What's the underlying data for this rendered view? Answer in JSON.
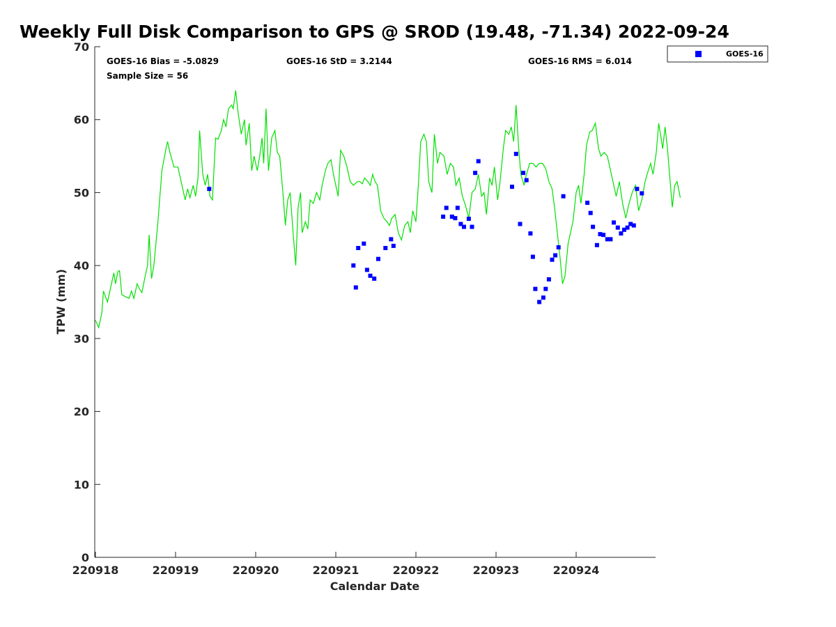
{
  "chart_data": {
    "type": "scatter",
    "title": "Weekly Full Disk Comparison to GPS @ SROD (19.48, -71.34) 2022-09-24",
    "xlabel": "Calendar Date",
    "ylabel": "TPW (mm)",
    "xlim": [
      0,
      7
    ],
    "ylim": [
      0,
      70
    ],
    "x_ticks": [
      0,
      1,
      2,
      3,
      4,
      5,
      6
    ],
    "x_tick_labels": [
      "220918",
      "220919",
      "220920",
      "220921",
      "220922",
      "220923",
      "220924"
    ],
    "y_ticks": [
      0,
      10,
      20,
      30,
      40,
      50,
      60,
      70
    ],
    "y_tick_labels": [
      "0",
      "10",
      "20",
      "30",
      "40",
      "50",
      "60",
      "70"
    ],
    "stats": {
      "bias": "GOES-16 Bias = -5.0829",
      "std": "GOES-16 StD = 3.2144",
      "rms": "GOES-16 RMS = 6.014",
      "sample_size": "Sample Size = 56"
    },
    "legend": {
      "label": "GOES-16",
      "position": "top-right-outside"
    },
    "series": [
      {
        "name": "GPS",
        "style": "line",
        "color": "#00e000",
        "points": [
          [
            0.0,
            32.5
          ],
          [
            0.04,
            31.5
          ],
          [
            0.08,
            33.5
          ],
          [
            0.1,
            36.5
          ],
          [
            0.15,
            35
          ],
          [
            0.2,
            37.5
          ],
          [
            0.23,
            39
          ],
          [
            0.25,
            37.5
          ],
          [
            0.28,
            39.2
          ],
          [
            0.3,
            39.3
          ],
          [
            0.33,
            36
          ],
          [
            0.38,
            35.7
          ],
          [
            0.42,
            35.5
          ],
          [
            0.45,
            36.5
          ],
          [
            0.48,
            35.5
          ],
          [
            0.52,
            37.5
          ],
          [
            0.55,
            36.8
          ],
          [
            0.58,
            36.3
          ],
          [
            0.62,
            38.5
          ],
          [
            0.65,
            40
          ],
          [
            0.67,
            44.2
          ],
          [
            0.7,
            38.2
          ],
          [
            0.73,
            40
          ],
          [
            0.78,
            46
          ],
          [
            0.83,
            53
          ],
          [
            0.88,
            56
          ],
          [
            0.9,
            57
          ],
          [
            0.93,
            55.5
          ],
          [
            0.98,
            53.5
          ],
          [
            1.03,
            53.5
          ],
          [
            1.08,
            51
          ],
          [
            1.12,
            49
          ],
          [
            1.15,
            50.5
          ],
          [
            1.18,
            49.3
          ],
          [
            1.22,
            51
          ],
          [
            1.25,
            49.5
          ],
          [
            1.28,
            52
          ],
          [
            1.3,
            58.5
          ],
          [
            1.34,
            52.5
          ],
          [
            1.37,
            51
          ],
          [
            1.4,
            52.5
          ],
          [
            1.43,
            49.5
          ],
          [
            1.46,
            49
          ],
          [
            1.5,
            57.5
          ],
          [
            1.53,
            57.3
          ],
          [
            1.57,
            58.5
          ],
          [
            1.6,
            60
          ],
          [
            1.63,
            59
          ],
          [
            1.66,
            61.5
          ],
          [
            1.7,
            62
          ],
          [
            1.72,
            61.5
          ],
          [
            1.75,
            64
          ],
          [
            1.78,
            61
          ],
          [
            1.82,
            58
          ],
          [
            1.86,
            60
          ],
          [
            1.88,
            56.5
          ],
          [
            1.92,
            59.5
          ],
          [
            1.95,
            53
          ],
          [
            1.98,
            55
          ],
          [
            2.02,
            53
          ],
          [
            2.05,
            55
          ],
          [
            2.08,
            57.5
          ],
          [
            2.1,
            54
          ],
          [
            2.13,
            61.5
          ],
          [
            2.16,
            53
          ],
          [
            2.2,
            57.5
          ],
          [
            2.24,
            58.5
          ],
          [
            2.27,
            55.5
          ],
          [
            2.3,
            55
          ],
          [
            2.34,
            50
          ],
          [
            2.37,
            45.5
          ],
          [
            2.4,
            49
          ],
          [
            2.43,
            50
          ],
          [
            2.47,
            44
          ],
          [
            2.5,
            40
          ],
          [
            2.53,
            48
          ],
          [
            2.56,
            50
          ],
          [
            2.58,
            44.5
          ],
          [
            2.62,
            46
          ],
          [
            2.65,
            45
          ],
          [
            2.68,
            49
          ],
          [
            2.72,
            48.5
          ],
          [
            2.76,
            50
          ],
          [
            2.8,
            49
          ],
          [
            2.83,
            51
          ],
          [
            2.87,
            53
          ],
          [
            2.9,
            54
          ],
          [
            2.94,
            54.5
          ],
          [
            2.97,
            52.5
          ],
          [
            3.0,
            51
          ],
          [
            3.03,
            49.5
          ],
          [
            3.06,
            55.8
          ],
          [
            3.1,
            55
          ],
          [
            3.14,
            53.5
          ],
          [
            3.18,
            51.5
          ],
          [
            3.22,
            51
          ],
          [
            3.27,
            51.5
          ],
          [
            3.3,
            51.5
          ],
          [
            3.33,
            51.2
          ],
          [
            3.36,
            52
          ],
          [
            3.4,
            51.5
          ],
          [
            3.43,
            51
          ],
          [
            3.46,
            52.5
          ],
          [
            3.49,
            51.5
          ],
          [
            3.52,
            51
          ],
          [
            3.56,
            47.5
          ],
          [
            3.6,
            46.5
          ],
          [
            3.64,
            46
          ],
          [
            3.67,
            45.5
          ],
          [
            3.7,
            46.5
          ],
          [
            3.74,
            47
          ],
          [
            3.78,
            44.5
          ],
          [
            3.82,
            43.5
          ],
          [
            3.86,
            45.5
          ],
          [
            3.9,
            46
          ],
          [
            3.93,
            44.5
          ],
          [
            3.96,
            47.5
          ],
          [
            4.0,
            46
          ],
          [
            4.03,
            51
          ],
          [
            4.06,
            57
          ],
          [
            4.1,
            58
          ],
          [
            4.13,
            57
          ],
          [
            4.16,
            51.5
          ],
          [
            4.2,
            50
          ],
          [
            4.23,
            58
          ],
          [
            4.27,
            54
          ],
          [
            4.3,
            55.5
          ],
          [
            4.35,
            55
          ],
          [
            4.39,
            52.5
          ],
          [
            4.43,
            54
          ],
          [
            4.47,
            53.5
          ],
          [
            4.5,
            51
          ],
          [
            4.54,
            52
          ],
          [
            4.58,
            49.5
          ],
          [
            4.62,
            48.2
          ],
          [
            4.66,
            46.5
          ],
          [
            4.7,
            50
          ],
          [
            4.74,
            50.5
          ],
          [
            4.78,
            52.5
          ],
          [
            4.82,
            49.5
          ],
          [
            4.85,
            50
          ],
          [
            4.88,
            47
          ],
          [
            4.92,
            52
          ],
          [
            4.95,
            51
          ],
          [
            4.98,
            53.5
          ],
          [
            5.02,
            49
          ],
          [
            5.05,
            51.5
          ],
          [
            5.09,
            56
          ],
          [
            5.12,
            58.5
          ],
          [
            5.16,
            58
          ],
          [
            5.19,
            59
          ],
          [
            5.22,
            57
          ],
          [
            5.25,
            62
          ],
          [
            5.28,
            56.5
          ],
          [
            5.31,
            52.5
          ],
          [
            5.35,
            51
          ],
          [
            5.38,
            52.5
          ],
          [
            5.42,
            54
          ],
          [
            5.46,
            54
          ],
          [
            5.5,
            53.5
          ],
          [
            5.54,
            54
          ],
          [
            5.58,
            54
          ],
          [
            5.62,
            53.3
          ],
          [
            5.66,
            51.5
          ],
          [
            5.7,
            50.5
          ],
          [
            5.73,
            48
          ],
          [
            5.76,
            45
          ],
          [
            5.8,
            41
          ],
          [
            5.83,
            37.5
          ],
          [
            5.86,
            38.5
          ],
          [
            5.9,
            43
          ],
          [
            5.93,
            44.5
          ],
          [
            5.96,
            46
          ],
          [
            6.0,
            50
          ],
          [
            6.03,
            51
          ],
          [
            6.06,
            48.5
          ],
          [
            6.1,
            52.5
          ],
          [
            6.13,
            56.5
          ],
          [
            6.17,
            58.3
          ],
          [
            6.2,
            58.5
          ],
          [
            6.24,
            59.5
          ],
          [
            6.28,
            56
          ],
          [
            6.31,
            55
          ],
          [
            6.35,
            55.5
          ],
          [
            6.39,
            55
          ],
          [
            6.43,
            53
          ],
          [
            6.46,
            51.5
          ],
          [
            6.5,
            49.5
          ],
          [
            6.54,
            51.5
          ],
          [
            6.58,
            48.5
          ],
          [
            6.62,
            46.5
          ],
          [
            6.66,
            48.5
          ],
          [
            6.7,
            50
          ],
          [
            6.74,
            51
          ],
          [
            6.78,
            47.5
          ],
          [
            6.82,
            49
          ],
          [
            6.86,
            51.5
          ],
          [
            6.9,
            53
          ],
          [
            6.93,
            54
          ],
          [
            6.96,
            52.5
          ],
          [
            7.0,
            55.5
          ],
          [
            7.03,
            59.5
          ],
          [
            7.06,
            57.5
          ],
          [
            7.08,
            56
          ],
          [
            7.11,
            59
          ],
          [
            7.14,
            56
          ],
          [
            7.17,
            52
          ],
          [
            7.2,
            48
          ],
          [
            7.23,
            51
          ],
          [
            7.26,
            51.5
          ],
          [
            7.3,
            49.3
          ]
        ]
      },
      {
        "name": "GOES-16",
        "style": "markers",
        "color": "#0000ff",
        "points": [
          [
            1.42,
            50.5
          ],
          [
            3.22,
            40
          ],
          [
            3.25,
            37
          ],
          [
            3.28,
            42.4
          ],
          [
            3.35,
            43
          ],
          [
            3.39,
            39.4
          ],
          [
            3.43,
            38.6
          ],
          [
            3.48,
            38.2
          ],
          [
            3.53,
            40.9
          ],
          [
            3.62,
            42.4
          ],
          [
            3.69,
            43.6
          ],
          [
            3.72,
            42.7
          ],
          [
            4.34,
            46.7
          ],
          [
            4.38,
            47.9
          ],
          [
            4.45,
            46.7
          ],
          [
            4.49,
            46.5
          ],
          [
            4.52,
            47.9
          ],
          [
            4.56,
            45.7
          ],
          [
            4.6,
            45.3
          ],
          [
            4.66,
            46.4
          ],
          [
            4.7,
            45.3
          ],
          [
            4.74,
            52.7
          ],
          [
            4.78,
            54.3
          ],
          [
            5.2,
            50.8
          ],
          [
            5.25,
            55.3
          ],
          [
            5.3,
            45.7
          ],
          [
            5.34,
            52.7
          ],
          [
            5.38,
            51.7
          ],
          [
            5.43,
            44.4
          ],
          [
            5.46,
            41.2
          ],
          [
            5.49,
            36.8
          ],
          [
            5.54,
            35
          ],
          [
            5.59,
            35.6
          ],
          [
            5.62,
            36.8
          ],
          [
            5.66,
            38.1
          ],
          [
            5.7,
            40.8
          ],
          [
            5.74,
            41.4
          ],
          [
            5.78,
            42.5
          ],
          [
            5.84,
            49.5
          ],
          [
            6.14,
            48.6
          ],
          [
            6.18,
            47.2
          ],
          [
            6.21,
            45.3
          ],
          [
            6.26,
            42.8
          ],
          [
            6.3,
            44.3
          ],
          [
            6.34,
            44.2
          ],
          [
            6.39,
            43.6
          ],
          [
            6.43,
            43.6
          ],
          [
            6.47,
            45.9
          ],
          [
            6.52,
            45.2
          ],
          [
            6.56,
            44.4
          ],
          [
            6.6,
            44.9
          ],
          [
            6.64,
            45.2
          ],
          [
            6.68,
            45.7
          ],
          [
            6.72,
            45.5
          ],
          [
            6.76,
            50.5
          ],
          [
            6.82,
            49.9
          ]
        ]
      }
    ]
  }
}
